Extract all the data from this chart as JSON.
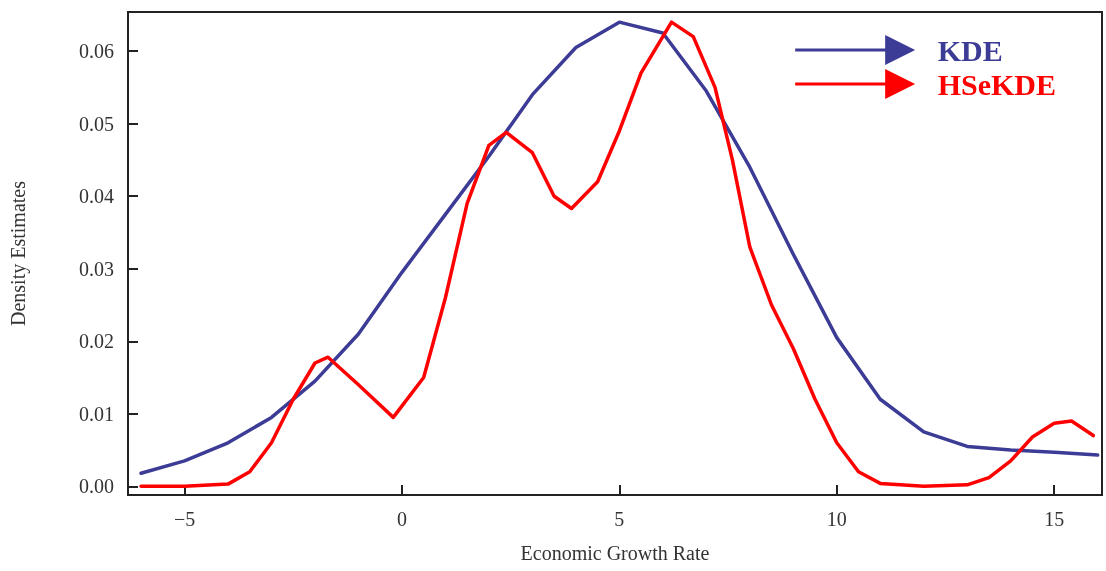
{
  "chart_data": {
    "type": "line",
    "xlabel": "Economic Growth Rate",
    "ylabel": "Density Estimates",
    "xlim": [
      -6.3,
      16.1
    ],
    "xticks": [
      {
        "value": -5,
        "label": "−5"
      },
      0,
      5,
      10,
      15
    ],
    "ylim": [
      -0.0012,
      0.0654
    ],
    "yticks": [
      {
        "value": 0,
        "label": "0.00"
      },
      0.01,
      0.02,
      0.03,
      0.04,
      0.05,
      0.06
    ],
    "grid": false,
    "legend": "top right",
    "marker": "none",
    "line_style": "solid",
    "series": [
      {
        "name": "KDE",
        "color": "#3c3c96",
        "x": [
          -6,
          -5,
          -4,
          -3,
          -2,
          -1,
          0,
          1,
          2,
          3,
          4,
          5,
          6,
          7,
          8,
          9,
          10,
          11,
          12,
          13,
          14,
          15,
          16
        ],
        "values": [
          0.0018,
          0.0035,
          0.006,
          0.0095,
          0.0145,
          0.021,
          0.0295,
          0.0375,
          0.0455,
          0.054,
          0.0605,
          0.064,
          0.0625,
          0.0545,
          0.044,
          0.032,
          0.0205,
          0.012,
          0.0075,
          0.0055,
          0.005,
          0.0047,
          0.0043
        ]
      },
      {
        "name": "HSeKDE",
        "color": "#ff0000",
        "x": [
          -6,
          -5,
          -4,
          -3.5,
          -3,
          -2.5,
          -2,
          -1.7,
          -1,
          -0.2,
          0.5,
          1,
          1.5,
          2,
          2.4,
          3,
          3.5,
          3.9,
          4.5,
          5,
          5.5,
          6.2,
          6.7,
          7.2,
          7.6,
          8,
          8.5,
          9,
          9.5,
          10,
          10.5,
          11,
          12,
          13,
          13.5,
          14,
          14.5,
          15,
          15.4,
          15.9
        ],
        "values": [
          0,
          0,
          0.0003,
          0.002,
          0.006,
          0.012,
          0.017,
          0.0178,
          0.014,
          0.0095,
          0.015,
          0.026,
          0.039,
          0.047,
          0.0488,
          0.046,
          0.04,
          0.0383,
          0.042,
          0.049,
          0.057,
          0.064,
          0.062,
          0.055,
          0.045,
          0.033,
          0.025,
          0.019,
          0.012,
          0.006,
          0.002,
          0.0004,
          0,
          0.0002,
          0.0012,
          0.0035,
          0.0068,
          0.0087,
          0.009,
          0.007
        ]
      }
    ]
  }
}
